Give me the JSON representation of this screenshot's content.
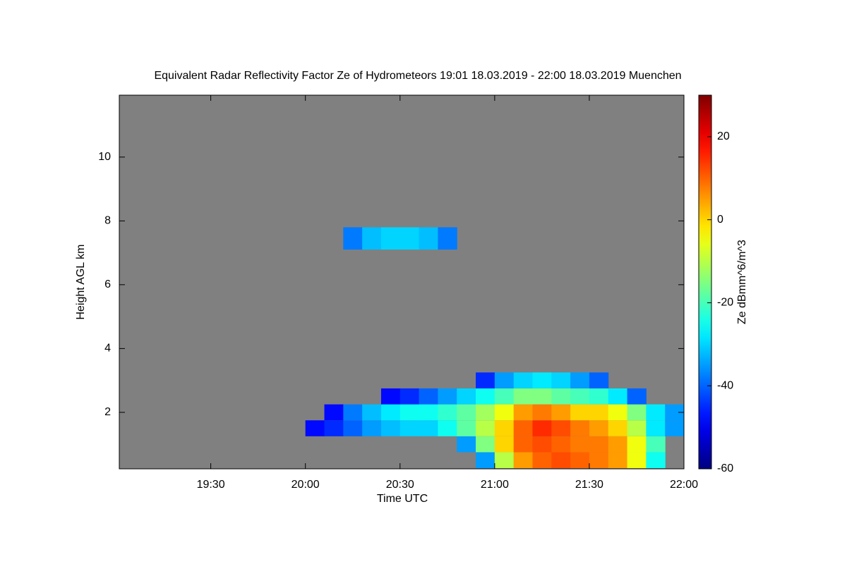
{
  "chart_data": {
    "type": "heatmap",
    "title": "Equivalent Radar Reflectivity Factor Ze of Hydrometeors    19:01 18.03.2019 - 22:00 18.03.2019 Muenchen",
    "x_label": "Time UTC",
    "y_label": "Height AGL km",
    "colorbar_label": "Ze dBmm^6/m^3",
    "background_color": "#808080",
    "colormap": "jet",
    "xlim": [
      19.0167,
      22.0
    ],
    "xticks": [
      {
        "value": 19.5,
        "label": "19:30"
      },
      {
        "value": 20.0,
        "label": "20:00"
      },
      {
        "value": 20.5,
        "label": "20:30"
      },
      {
        "value": 21.0,
        "label": "21:00"
      },
      {
        "value": 21.5,
        "label": "21:30"
      },
      {
        "value": 22.0,
        "label": "22:00"
      }
    ],
    "ylim": [
      0.23,
      11.94
    ],
    "yticks": [
      2,
      4,
      6,
      8,
      10
    ],
    "zlim": [
      -60,
      30
    ],
    "zticks": [
      -60,
      -40,
      -20,
      0,
      20
    ],
    "xbins": [
      19.0,
      19.1,
      19.2,
      19.3,
      19.4,
      19.5,
      19.6,
      19.7,
      19.8,
      19.9,
      20.0,
      20.1,
      20.2,
      20.3,
      20.4,
      20.5,
      20.6,
      20.7,
      20.8,
      20.9,
      21.0,
      21.1,
      21.2,
      21.3,
      21.4,
      21.5,
      21.6,
      21.7,
      21.8,
      21.9,
      22.0
    ],
    "ybins": [
      0.25,
      0.75,
      1.25,
      1.75,
      2.25,
      2.75,
      3.25,
      7.1,
      7.8
    ],
    "z": [
      [
        null,
        null,
        null,
        null,
        null,
        null,
        null,
        null,
        null,
        null,
        null,
        null,
        null,
        null,
        null,
        null,
        null,
        null,
        null,
        -35,
        -10,
        5,
        10,
        12,
        10,
        8,
        5,
        -5,
        -25,
        null
      ],
      [
        null,
        null,
        null,
        null,
        null,
        null,
        null,
        null,
        null,
        null,
        null,
        null,
        null,
        null,
        null,
        null,
        null,
        null,
        -35,
        -15,
        0,
        10,
        12,
        10,
        8,
        8,
        5,
        -5,
        -20,
        null
      ],
      [
        null,
        null,
        null,
        null,
        null,
        null,
        null,
        null,
        null,
        null,
        -48,
        -45,
        -40,
        -35,
        -32,
        -30,
        -30,
        -25,
        -18,
        -10,
        0,
        10,
        15,
        12,
        8,
        5,
        0,
        -10,
        -28,
        -35
      ],
      [
        null,
        null,
        null,
        null,
        null,
        null,
        null,
        null,
        null,
        null,
        null,
        -48,
        -38,
        -32,
        -28,
        -25,
        -25,
        -22,
        -18,
        -12,
        -5,
        5,
        8,
        5,
        0,
        0,
        -5,
        -15,
        -28,
        -35
      ],
      [
        null,
        null,
        null,
        null,
        null,
        null,
        null,
        null,
        null,
        null,
        null,
        null,
        null,
        null,
        -48,
        -45,
        -40,
        -35,
        -30,
        -25,
        -20,
        -15,
        -15,
        -18,
        -20,
        -22,
        -28,
        -40,
        null,
        null
      ],
      [
        null,
        null,
        null,
        null,
        null,
        null,
        null,
        null,
        null,
        null,
        null,
        null,
        null,
        null,
        null,
        null,
        null,
        null,
        null,
        -45,
        -35,
        -30,
        -28,
        -30,
        -35,
        -40,
        null,
        null,
        null,
        null
      ],
      [
        null,
        null,
        null,
        null,
        null,
        null,
        null,
        null,
        null,
        null,
        null,
        null,
        null,
        null,
        null,
        null,
        null,
        null,
        null,
        null,
        null,
        null,
        null,
        null,
        null,
        null,
        null,
        null,
        null,
        null
      ],
      [
        null,
        null,
        null,
        null,
        null,
        null,
        null,
        null,
        null,
        null,
        null,
        null,
        -38,
        -32,
        -30,
        -30,
        -32,
        -38,
        null,
        null,
        null,
        null,
        null,
        null,
        null,
        null,
        null,
        null,
        null,
        null
      ]
    ]
  }
}
